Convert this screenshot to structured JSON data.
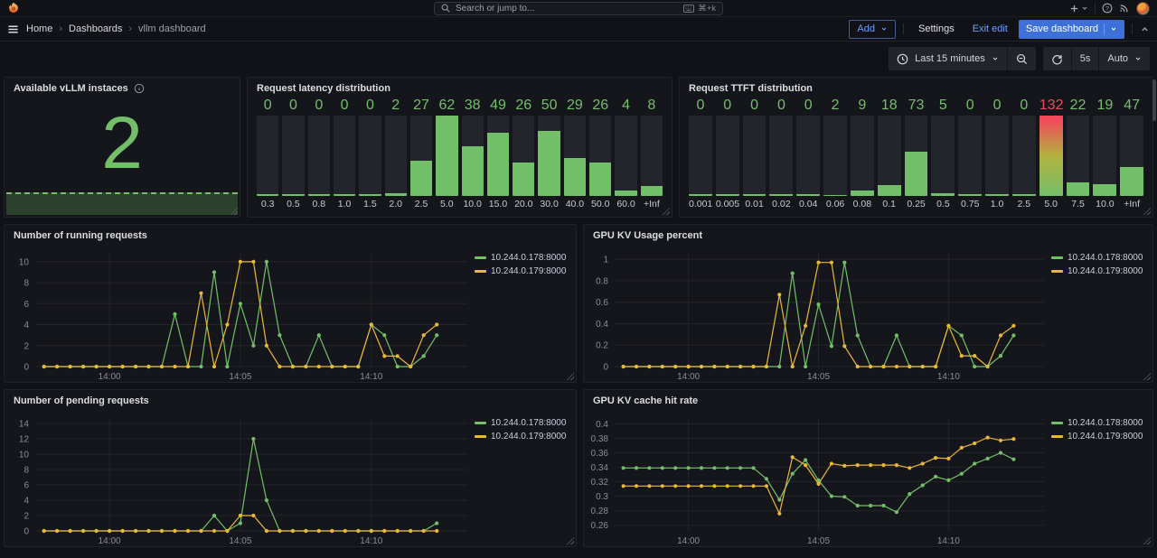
{
  "topbar": {
    "search_placeholder": "Search or jump to...",
    "search_shortcut": "⌘+k"
  },
  "breadcrumb": [
    "Home",
    "Dashboards",
    "vllm dashboard"
  ],
  "edit_actions": {
    "add": "Add",
    "settings": "Settings",
    "exit_edit": "Exit edit",
    "save": "Save dashboard"
  },
  "toolbar": {
    "time_range": "Last 15 minutes",
    "refresh_interval": "5s",
    "auto": "Auto"
  },
  "colors": {
    "green": "#73BF69",
    "yellow": "#EAB839",
    "red": "#F2495C",
    "blue": "#3D71D9",
    "link_blue": "#6E9FFF"
  },
  "chart_data": [
    {
      "type": "stat",
      "title": "Available vLLM instaces",
      "value": "2",
      "color": "#73BF69",
      "sparkline_constant": 2
    },
    {
      "type": "bar",
      "title": "Request latency distribution",
      "categories": [
        "0.3",
        "0.5",
        "0.8",
        "1.0",
        "1.5",
        "2.0",
        "2.5",
        "5.0",
        "10.0",
        "15.0",
        "20.0",
        "30.0",
        "40.0",
        "50.0",
        "60.0",
        "+Inf"
      ],
      "values": [
        0,
        0,
        0,
        0,
        0,
        2,
        27,
        62,
        38,
        49,
        26,
        50,
        29,
        26,
        4,
        8
      ],
      "ylim": [
        0,
        62
      ],
      "red_threshold": 100,
      "bar_color": "#73BF69"
    },
    {
      "type": "bar",
      "title": "Request TTFT distribution",
      "categories": [
        "0.001",
        "0.005",
        "0.01",
        "0.02",
        "0.04",
        "0.06",
        "0.08",
        "0.1",
        "0.25",
        "0.5",
        "0.75",
        "1.0",
        "2.5",
        "5.0",
        "7.5",
        "10.0",
        "+Inf"
      ],
      "values": [
        0,
        0,
        0,
        0,
        0,
        2,
        9,
        18,
        73,
        5,
        0,
        0,
        0,
        132,
        22,
        19,
        47
      ],
      "ylim": [
        0,
        132
      ],
      "red_threshold": 100,
      "bar_color": "#73BF69"
    },
    {
      "type": "line",
      "title": "Number of running requests",
      "x": [
        "13:57:30",
        "13:58:00",
        "13:58:30",
        "13:59:00",
        "13:59:30",
        "14:00:00",
        "14:00:30",
        "14:01:00",
        "14:01:30",
        "14:02:00",
        "14:02:30",
        "14:03:00",
        "14:03:30",
        "14:04:00",
        "14:04:30",
        "14:05:00",
        "14:05:30",
        "14:06:00",
        "14:06:30",
        "14:07:00",
        "14:07:30",
        "14:08:00",
        "14:08:30",
        "14:09:00",
        "14:09:30",
        "14:10:00",
        "14:10:30",
        "14:11:00",
        "14:11:30",
        "14:12:00",
        "14:12:30"
      ],
      "series": [
        {
          "name": "10.244.0.178:8000",
          "color": "#73BF69",
          "values": [
            0,
            0,
            0,
            0,
            0,
            0,
            0,
            0,
            0,
            0,
            5,
            0,
            0,
            9,
            0,
            6,
            2,
            10,
            3,
            0,
            0,
            3,
            0,
            0,
            0,
            4,
            3,
            0,
            0,
            1,
            3
          ]
        },
        {
          "name": "10.244.0.179:8000",
          "color": "#EAB839",
          "values": [
            0,
            0,
            0,
            0,
            0,
            0,
            0,
            0,
            0,
            0,
            0,
            0,
            7,
            0,
            4,
            10,
            10,
            2,
            0,
            0,
            0,
            0,
            0,
            0,
            0,
            4,
            1,
            1,
            0,
            3,
            4
          ]
        }
      ],
      "xlim": [
        "13:57:10",
        "14:13:40"
      ],
      "ylim": [
        0,
        10.85
      ],
      "yticks": [
        [
          0,
          "0"
        ],
        [
          2,
          "2"
        ],
        [
          4,
          "4"
        ],
        [
          6,
          "6"
        ],
        [
          8,
          "8"
        ],
        [
          10,
          "10"
        ]
      ],
      "xticks": [
        [
          "14:00:00",
          "14:00"
        ],
        [
          "14:05:00",
          "14:05"
        ],
        [
          "14:10:00",
          "14:10"
        ]
      ],
      "legend_position": "right"
    },
    {
      "type": "line",
      "title": "GPU KV Usage percent",
      "x": [
        "13:57:30",
        "13:58:00",
        "13:58:30",
        "13:59:00",
        "13:59:30",
        "14:00:00",
        "14:00:30",
        "14:01:00",
        "14:01:30",
        "14:02:00",
        "14:02:30",
        "14:03:00",
        "14:03:30",
        "14:04:00",
        "14:04:30",
        "14:05:00",
        "14:05:30",
        "14:06:00",
        "14:06:30",
        "14:07:00",
        "14:07:30",
        "14:08:00",
        "14:08:30",
        "14:09:00",
        "14:09:30",
        "14:10:00",
        "14:10:30",
        "14:11:00",
        "14:11:30",
        "14:12:00",
        "14:12:30"
      ],
      "series": [
        {
          "name": "10.244.0.178:8000",
          "color": "#73BF69",
          "values": [
            0,
            0,
            0,
            0,
            0,
            0,
            0,
            0,
            0,
            0,
            0,
            0,
            0,
            0.87,
            0,
            0.58,
            0.19,
            0.97,
            0.29,
            0,
            0,
            0.29,
            0,
            0,
            0,
            0.38,
            0.29,
            0,
            0,
            0.1,
            0.29
          ]
        },
        {
          "name": "10.244.0.179:8000",
          "color": "#EAB839",
          "values": [
            0,
            0,
            0,
            0,
            0,
            0,
            0,
            0,
            0,
            0,
            0,
            0,
            0.67,
            0,
            0.38,
            0.97,
            0.97,
            0.19,
            0,
            0,
            0,
            0,
            0,
            0,
            0,
            0.38,
            0.1,
            0.1,
            0,
            0.29,
            0.38
          ]
        }
      ],
      "xlim": [
        "13:57:10",
        "14:13:40"
      ],
      "ylim": [
        0,
        1.06
      ],
      "yticks": [
        [
          0,
          "0"
        ],
        [
          0.2,
          "0.2"
        ],
        [
          0.4,
          "0.4"
        ],
        [
          0.6,
          "0.6"
        ],
        [
          0.8,
          "0.8"
        ],
        [
          1,
          "1"
        ]
      ],
      "xticks": [
        [
          "14:00:00",
          "14:00"
        ],
        [
          "14:05:00",
          "14:05"
        ],
        [
          "14:10:00",
          "14:10"
        ]
      ],
      "legend_position": "right"
    },
    {
      "type": "line",
      "title": "Number of pending requests",
      "x": [
        "13:57:30",
        "13:58:00",
        "13:58:30",
        "13:59:00",
        "13:59:30",
        "14:00:00",
        "14:00:30",
        "14:01:00",
        "14:01:30",
        "14:02:00",
        "14:02:30",
        "14:03:00",
        "14:03:30",
        "14:04:00",
        "14:04:30",
        "14:05:00",
        "14:05:30",
        "14:06:00",
        "14:06:30",
        "14:07:00",
        "14:07:30",
        "14:08:00",
        "14:08:30",
        "14:09:00",
        "14:09:30",
        "14:10:00",
        "14:10:30",
        "14:11:00",
        "14:11:30",
        "14:12:00",
        "14:12:30"
      ],
      "series": [
        {
          "name": "10.244.0.178:8000",
          "color": "#73BF69",
          "values": [
            0,
            0,
            0,
            0,
            0,
            0,
            0,
            0,
            0,
            0,
            0,
            0,
            0,
            2,
            0,
            1,
            12,
            4,
            0,
            0,
            0,
            0,
            0,
            0,
            0,
            0,
            0,
            0,
            0,
            0,
            1
          ]
        },
        {
          "name": "10.244.0.179:8000",
          "color": "#EAB839",
          "values": [
            0,
            0,
            0,
            0,
            0,
            0,
            0,
            0,
            0,
            0,
            0,
            0,
            0,
            0,
            0,
            2,
            2,
            0,
            0,
            0,
            0,
            0,
            0,
            0,
            0,
            0,
            0,
            0,
            0,
            0,
            0
          ]
        }
      ],
      "xlim": [
        "13:57:10",
        "14:13:40"
      ],
      "ylim": [
        0,
        14.7
      ],
      "yticks": [
        [
          0,
          "0"
        ],
        [
          2,
          "2"
        ],
        [
          4,
          "4"
        ],
        [
          6,
          "6"
        ],
        [
          8,
          "8"
        ],
        [
          10,
          "10"
        ],
        [
          12,
          "12"
        ],
        [
          14,
          "14"
        ]
      ],
      "xticks": [
        [
          "14:00:00",
          "14:00"
        ],
        [
          "14:05:00",
          "14:05"
        ],
        [
          "14:10:00",
          "14:10"
        ]
      ],
      "legend_position": "right"
    },
    {
      "type": "line",
      "title": "GPU KV cache hit rate",
      "x": [
        "13:57:30",
        "13:58:00",
        "13:58:30",
        "13:59:00",
        "13:59:30",
        "14:00:00",
        "14:00:30",
        "14:01:00",
        "14:01:30",
        "14:02:00",
        "14:02:30",
        "14:03:00",
        "14:03:30",
        "14:04:00",
        "14:04:30",
        "14:05:00",
        "14:05:30",
        "14:06:00",
        "14:06:30",
        "14:07:00",
        "14:07:30",
        "14:08:00",
        "14:08:30",
        "14:09:00",
        "14:09:30",
        "14:10:00",
        "14:10:30",
        "14:11:00",
        "14:11:30",
        "14:12:00",
        "14:12:30"
      ],
      "series": [
        {
          "name": "10.244.0.178:8000",
          "color": "#73BF69",
          "values": [
            0.339,
            0.339,
            0.339,
            0.339,
            0.339,
            0.339,
            0.339,
            0.339,
            0.339,
            0.339,
            0.339,
            0.324,
            0.295,
            0.331,
            0.35,
            0.322,
            0.3,
            0.299,
            0.287,
            0.287,
            0.287,
            0.278,
            0.303,
            0.315,
            0.327,
            0.322,
            0.331,
            0.345,
            0.352,
            0.36,
            0.351
          ]
        },
        {
          "name": "10.244.0.179:8000",
          "color": "#EAB839",
          "values": [
            0.314,
            0.314,
            0.314,
            0.314,
            0.314,
            0.314,
            0.314,
            0.314,
            0.314,
            0.314,
            0.314,
            0.314,
            0.276,
            0.354,
            0.343,
            0.317,
            0.345,
            0.342,
            0.343,
            0.343,
            0.343,
            0.343,
            0.339,
            0.345,
            0.353,
            0.352,
            0.367,
            0.373,
            0.381,
            0.377,
            0.379
          ]
        }
      ],
      "xlim": [
        "13:57:10",
        "14:13:40"
      ],
      "ylim": [
        0.252,
        0.408
      ],
      "yticks": [
        [
          0.26,
          "0.26"
        ],
        [
          0.28,
          "0.28"
        ],
        [
          0.3,
          "0.3"
        ],
        [
          0.32,
          "0.32"
        ],
        [
          0.34,
          "0.34"
        ],
        [
          0.36,
          "0.36"
        ],
        [
          0.38,
          "0.38"
        ],
        [
          0.4,
          "0.4"
        ]
      ],
      "xticks": [
        [
          "14:00:00",
          "14:00"
        ],
        [
          "14:05:00",
          "14:05"
        ],
        [
          "14:10:00",
          "14:10"
        ]
      ],
      "legend_position": "right"
    }
  ]
}
